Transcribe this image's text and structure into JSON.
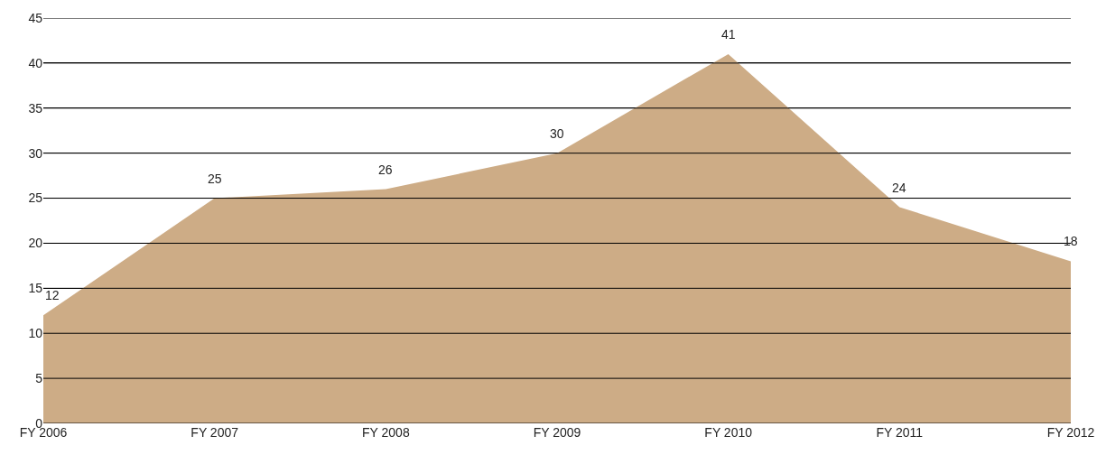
{
  "chart_data": {
    "type": "area",
    "categories": [
      "FY 2006",
      "FY 2007",
      "FY 2008",
      "FY 2009",
      "FY 2010",
      "FY 2011",
      "FY 2012"
    ],
    "values": [
      12,
      25,
      26,
      30,
      41,
      24,
      18
    ],
    "color": "#cdac86",
    "data_labels": true,
    "ylim": [
      0,
      45
    ],
    "yticks": [
      0,
      5,
      10,
      15,
      20,
      25,
      30,
      35,
      40,
      45
    ],
    "grid": "y",
    "legend": false
  }
}
